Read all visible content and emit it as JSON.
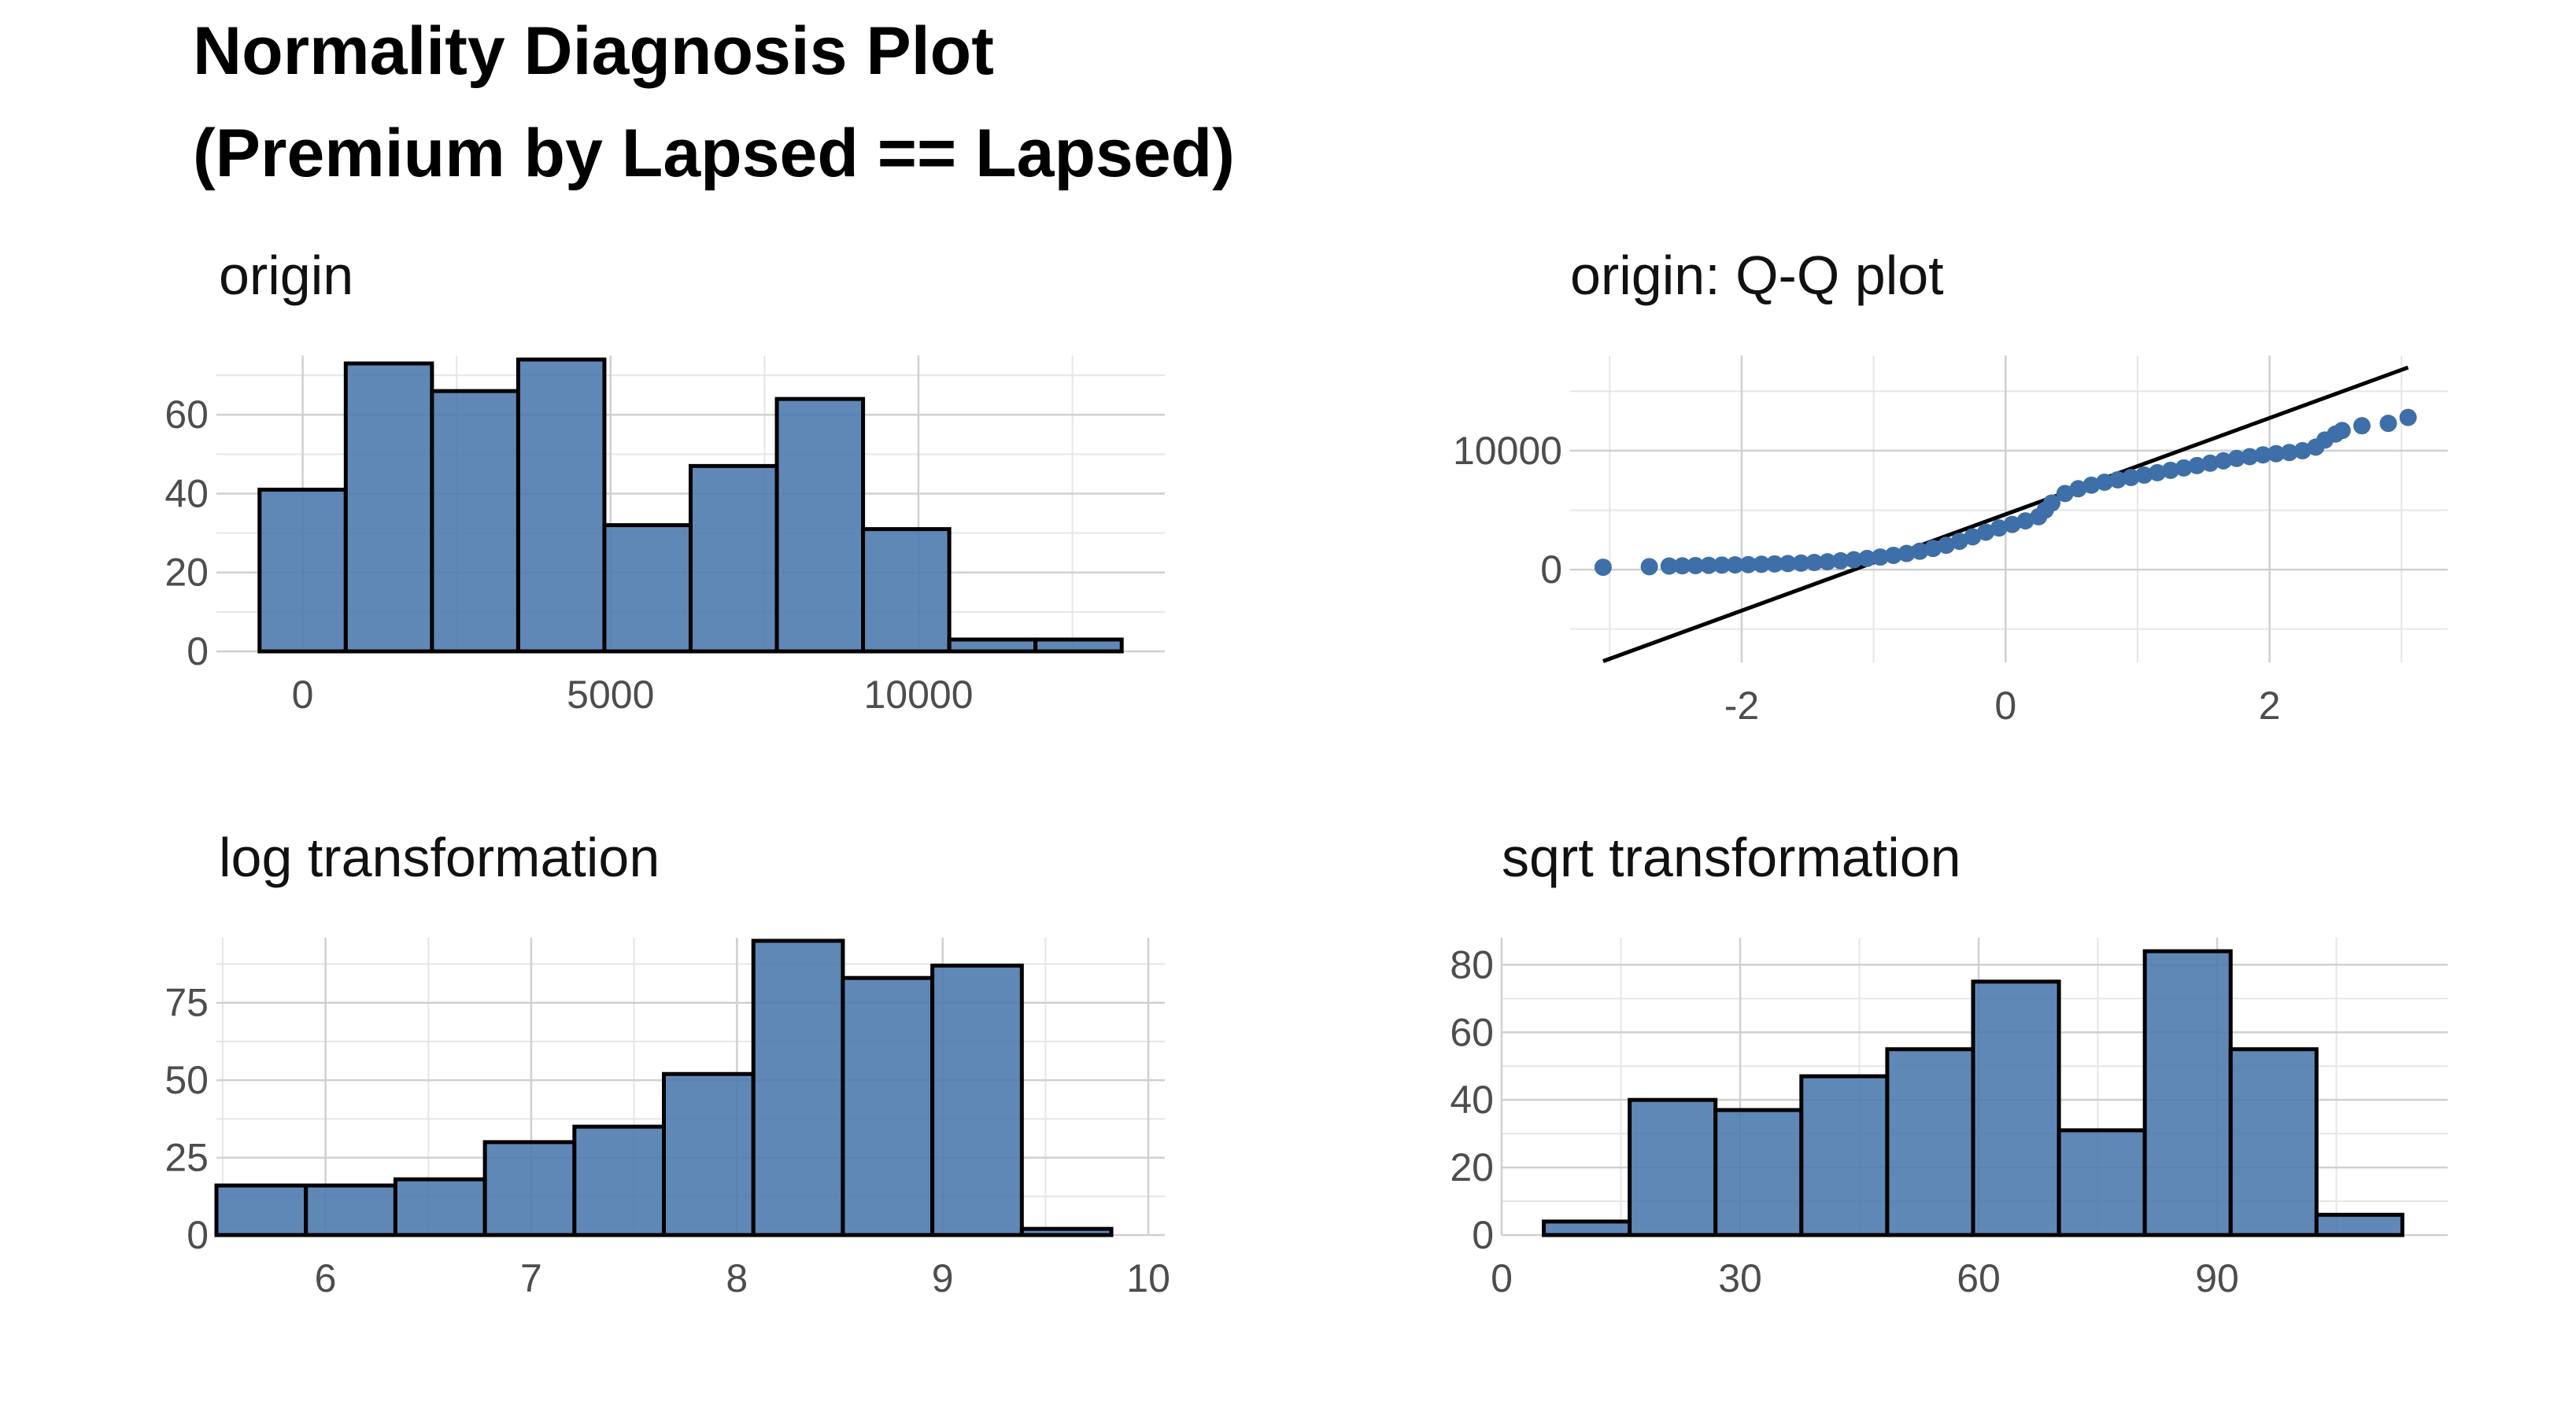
{
  "title": {
    "line1": "Normality Diagnosis Plot",
    "line2": "(Premium by Lapsed == Lapsed)"
  },
  "colors": {
    "bar_fill": "#4a78ad",
    "point": "#3e6fa8",
    "grid": "#d0d0d0",
    "line": "#000000"
  },
  "chart_data": [
    {
      "id": "origin",
      "type": "bar",
      "title": "origin",
      "xlim": [
        -1400,
        14000
      ],
      "ylim": [
        0,
        75
      ],
      "x_ticks": [
        0,
        5000,
        10000
      ],
      "y_ticks": [
        0,
        20,
        40,
        60
      ],
      "bins": [
        {
          "x0": -700,
          "x1": 700,
          "count": 41
        },
        {
          "x0": 700,
          "x1": 2100,
          "count": 73
        },
        {
          "x0": 2100,
          "x1": 3500,
          "count": 66
        },
        {
          "x0": 3500,
          "x1": 4900,
          "count": 74
        },
        {
          "x0": 4900,
          "x1": 6300,
          "count": 32
        },
        {
          "x0": 6300,
          "x1": 7700,
          "count": 47
        },
        {
          "x0": 7700,
          "x1": 9100,
          "count": 64
        },
        {
          "x0": 9100,
          "x1": 10500,
          "count": 31
        },
        {
          "x0": 10500,
          "x1": 11900,
          "count": 3
        },
        {
          "x0": 11900,
          "x1": 13300,
          "count": 3
        }
      ]
    },
    {
      "id": "qq",
      "type": "scatter",
      "title": "origin: Q-Q plot",
      "xlim": [
        -3.3,
        3.35
      ],
      "ylim": [
        -7800,
        18000
      ],
      "x_ticks": [
        -2,
        0,
        2
      ],
      "y_ticks": [
        0,
        10000
      ],
      "reference_line": {
        "x": [
          -3.05,
          3.05
        ],
        "y": [
          -7700,
          17000
        ]
      },
      "points": [
        [
          -3.05,
          200
        ],
        [
          -2.7,
          250
        ],
        [
          -2.55,
          300
        ],
        [
          -2.45,
          320
        ],
        [
          -2.35,
          340
        ],
        [
          -2.25,
          360
        ],
        [
          -2.15,
          380
        ],
        [
          -2.05,
          400
        ],
        [
          -1.95,
          420
        ],
        [
          -1.85,
          450
        ],
        [
          -1.75,
          480
        ],
        [
          -1.65,
          510
        ],
        [
          -1.55,
          550
        ],
        [
          -1.45,
          600
        ],
        [
          -1.35,
          660
        ],
        [
          -1.25,
          740
        ],
        [
          -1.15,
          830
        ],
        [
          -1.05,
          940
        ],
        [
          -0.95,
          1060
        ],
        [
          -0.85,
          1200
        ],
        [
          -0.75,
          1360
        ],
        [
          -0.65,
          1550
        ],
        [
          -0.55,
          1780
        ],
        [
          -0.45,
          2050
        ],
        [
          -0.35,
          2380
        ],
        [
          -0.25,
          2760
        ],
        [
          -0.15,
          3150
        ],
        [
          -0.05,
          3500
        ],
        [
          0.05,
          3800
        ],
        [
          0.15,
          4100
        ],
        [
          0.25,
          4450
        ],
        [
          0.3,
          5000
        ],
        [
          0.35,
          5600
        ],
        [
          0.45,
          6400
        ],
        [
          0.55,
          6800
        ],
        [
          0.65,
          7100
        ],
        [
          0.75,
          7350
        ],
        [
          0.85,
          7550
        ],
        [
          0.95,
          7750
        ],
        [
          1.05,
          7950
        ],
        [
          1.15,
          8150
        ],
        [
          1.25,
          8350
        ],
        [
          1.35,
          8550
        ],
        [
          1.45,
          8750
        ],
        [
          1.55,
          8950
        ],
        [
          1.65,
          9150
        ],
        [
          1.75,
          9350
        ],
        [
          1.85,
          9500
        ],
        [
          1.95,
          9650
        ],
        [
          2.05,
          9750
        ],
        [
          2.15,
          9850
        ],
        [
          2.25,
          10000
        ],
        [
          2.35,
          10300
        ],
        [
          2.42,
          10900
        ],
        [
          2.5,
          11400
        ],
        [
          2.55,
          11700
        ],
        [
          2.7,
          12100
        ],
        [
          2.9,
          12300
        ],
        [
          3.05,
          12800
        ]
      ]
    },
    {
      "id": "log",
      "type": "bar",
      "title": "log transformation",
      "xlim": [
        5.47,
        10.08
      ],
      "ylim": [
        0,
        96
      ],
      "x_ticks": [
        6,
        7,
        8,
        9,
        10
      ],
      "y_ticks": [
        0,
        25,
        50,
        75
      ],
      "bins": [
        {
          "x0": 5.47,
          "x1": 5.905,
          "count": 16
        },
        {
          "x0": 5.905,
          "x1": 6.34,
          "count": 16
        },
        {
          "x0": 6.34,
          "x1": 6.775,
          "count": 18
        },
        {
          "x0": 6.775,
          "x1": 7.21,
          "count": 30
        },
        {
          "x0": 7.21,
          "x1": 7.645,
          "count": 35
        },
        {
          "x0": 7.645,
          "x1": 8.08,
          "count": 52
        },
        {
          "x0": 8.08,
          "x1": 8.515,
          "count": 95
        },
        {
          "x0": 8.515,
          "x1": 8.95,
          "count": 83
        },
        {
          "x0": 8.95,
          "x1": 9.385,
          "count": 87
        },
        {
          "x0": 9.385,
          "x1": 9.82,
          "count": 2
        }
      ]
    },
    {
      "id": "sqrt",
      "type": "bar",
      "title": "sqrt transformation",
      "xlim": [
        0,
        119
      ],
      "ylim": [
        0,
        88
      ],
      "x_ticks": [
        0,
        30,
        60,
        90
      ],
      "y_ticks": [
        0,
        20,
        40,
        60,
        80
      ],
      "bins": [
        {
          "x0": 5.3,
          "x1": 16.1,
          "count": 4
        },
        {
          "x0": 16.1,
          "x1": 26.9,
          "count": 40
        },
        {
          "x0": 26.9,
          "x1": 37.7,
          "count": 37
        },
        {
          "x0": 37.7,
          "x1": 48.5,
          "count": 47
        },
        {
          "x0": 48.5,
          "x1": 59.3,
          "count": 55
        },
        {
          "x0": 59.3,
          "x1": 70.1,
          "count": 75
        },
        {
          "x0": 70.1,
          "x1": 80.9,
          "count": 31
        },
        {
          "x0": 80.9,
          "x1": 91.7,
          "count": 84
        },
        {
          "x0": 91.7,
          "x1": 102.5,
          "count": 55
        },
        {
          "x0": 102.5,
          "x1": 113.3,
          "count": 6
        }
      ]
    }
  ]
}
